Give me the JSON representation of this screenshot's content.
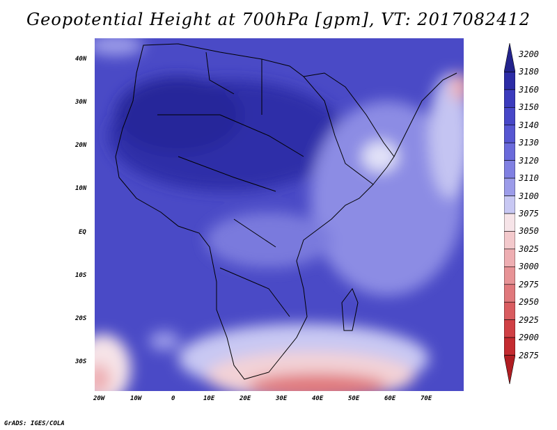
{
  "title": "Geopotential Height at 700hPa [gpm], VT: 2017082412",
  "credit": "GrADS: IGES/COLA",
  "lat_labels": [
    "40N",
    "30N",
    "20N",
    "10N",
    "EQ",
    "10S",
    "20S",
    "30S"
  ],
  "lon_labels": [
    "20W",
    "10W",
    "0",
    "10E",
    "20E",
    "30E",
    "40E",
    "50E",
    "60E",
    "70E"
  ],
  "colorbar": {
    "levels": [
      "3200",
      "3180",
      "3160",
      "3150",
      "3140",
      "3130",
      "3120",
      "3110",
      "3100",
      "3075",
      "3050",
      "3025",
      "3000",
      "2975",
      "2950",
      "2925",
      "2900",
      "2875"
    ],
    "colors": [
      "#23238c",
      "#2c2ca6",
      "#3b3bbd",
      "#4747c8",
      "#5656d2",
      "#6a6adb",
      "#8080e2",
      "#9c9ce9",
      "#c8c8f3",
      "#f6e4e8",
      "#f3c9cc",
      "#eeaeb2",
      "#e79396",
      "#e0787c",
      "#d95c60",
      "#d04045",
      "#c42b30",
      "#b01d22"
    ]
  }
}
